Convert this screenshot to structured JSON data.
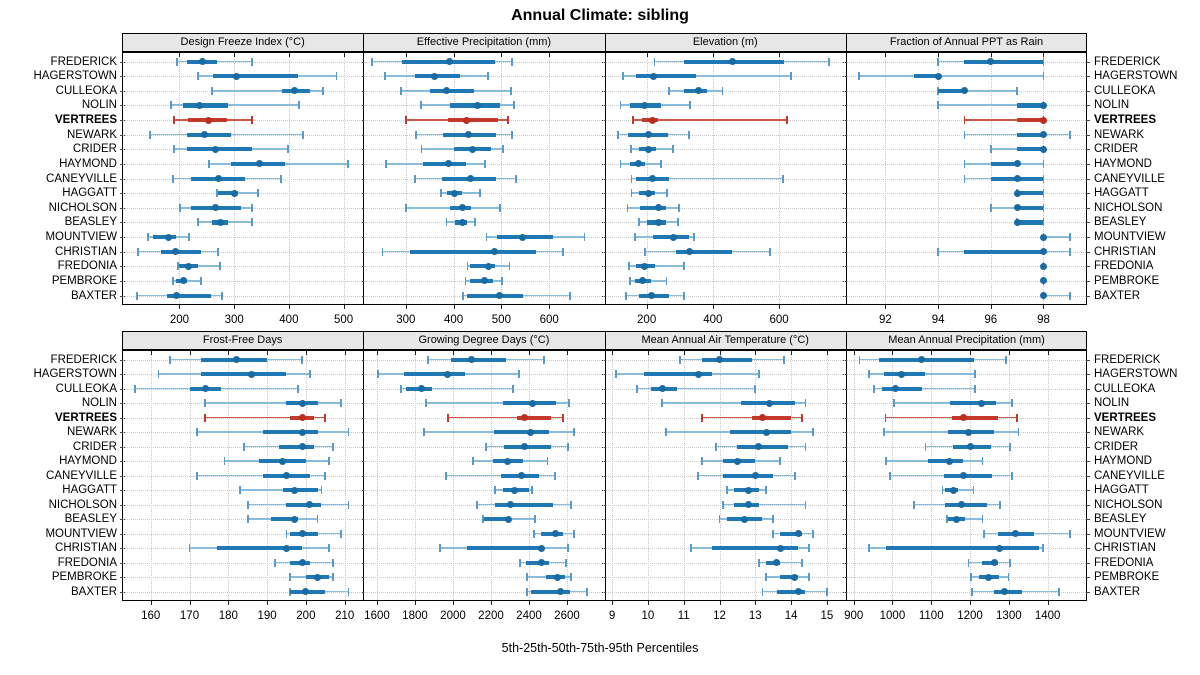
{
  "title": "Annual Climate: sibling",
  "caption": "5th-25th-50th-75th-95th Percentiles",
  "chart_data": {
    "type": "scatter",
    "variant": "percentile-dotplot",
    "percentiles": [
      5,
      25,
      50,
      75,
      95
    ],
    "grid": "dotted",
    "legend": "none",
    "highlight_site": "VERTREES",
    "colors": {
      "box": "#1f77b4",
      "whisker": "#8abbdb",
      "cap": "#569bc9",
      "dot": "#1b6ba3",
      "highlight_box": "#c3392b",
      "highlight_whisker": "#cd5a49",
      "highlight_cap": "#c3392b",
      "highlight_dot": "#bb2e20",
      "header_bg": "#e7e7e7",
      "gridline": "#c9c9c9"
    },
    "sites": [
      "FREDERICK",
      "HAGERSTOWN",
      "CULLEOKA",
      "NOLIN",
      "VERTREES",
      "NEWARK",
      "CRIDER",
      "HAYMOND",
      "CANEYVILLE",
      "HAGGATT",
      "NICHOLSON",
      "BEASLEY",
      "MOUNTVIEW",
      "CHRISTIAN",
      "FREDONIA",
      "PEMBROKE",
      "BAXTER"
    ],
    "panels": [
      {
        "title": "Design Freeze Index (°C)",
        "ticks": [
          200,
          300,
          400,
          500
        ],
        "domain": [
          95,
          536
        ],
        "values": [
          [
            195,
            213,
            242,
            268,
            332
          ],
          [
            234,
            261,
            305,
            417,
            487
          ],
          [
            260,
            387,
            411,
            438,
            463
          ],
          [
            184,
            207,
            237,
            289,
            419
          ],
          [
            190,
            216,
            254,
            286,
            332
          ],
          [
            146,
            213,
            246,
            295,
            426
          ],
          [
            190,
            213,
            265,
            332,
            399
          ],
          [
            254,
            295,
            347,
            393,
            508
          ],
          [
            188,
            222,
            271,
            320,
            385
          ],
          [
            269,
            271,
            301,
            307,
            344
          ],
          [
            201,
            222,
            266,
            313,
            332
          ],
          [
            234,
            259,
            275,
            289,
            332
          ],
          [
            142,
            152,
            180,
            194,
            218
          ],
          [
            124,
            167,
            193,
            240,
            271
          ],
          [
            198,
            199,
            217,
            234,
            274
          ],
          [
            188,
            193,
            207,
            213,
            240
          ],
          [
            123,
            178,
            194,
            258,
            278
          ]
        ]
      },
      {
        "title": "Effective Precipitation (mm)",
        "ticks": [
          300,
          400,
          500,
          600
        ],
        "domain": [
          211,
          716
        ],
        "values": [
          [
            230,
            293,
            391,
            486,
            523
          ],
          [
            256,
            319,
            361,
            413,
            472
          ],
          [
            290,
            350,
            386,
            442,
            520
          ],
          [
            331,
            392,
            451,
            498,
            526
          ],
          [
            301,
            389,
            427,
            493,
            514
          ],
          [
            321,
            377,
            432,
            488,
            523
          ],
          [
            333,
            401,
            439,
            479,
            503
          ],
          [
            258,
            336,
            390,
            427,
            465
          ],
          [
            319,
            375,
            436,
            488,
            531
          ],
          [
            373,
            386,
            401,
            418,
            456
          ],
          [
            300,
            392,
            418,
            437,
            497
          ],
          [
            385,
            402,
            418,
            427,
            444
          ],
          [
            469,
            490,
            545,
            608,
            674
          ],
          [
            251,
            308,
            485,
            573,
            629
          ],
          [
            429,
            434,
            472,
            486,
            517
          ],
          [
            425,
            434,
            465,
            483,
            502
          ],
          [
            420,
            427,
            497,
            545,
            643
          ]
        ]
      },
      {
        "title": "Elevation (m)",
        "ticks": [
          200,
          400,
          600
        ],
        "domain": [
          73,
          802
        ],
        "values": [
          [
            224,
            313,
            459,
            615,
            751
          ],
          [
            128,
            167,
            222,
            348,
            635
          ],
          [
            267,
            313,
            358,
            383,
            429
          ],
          [
            121,
            150,
            194,
            244,
            331
          ],
          [
            160,
            187,
            217,
            234,
            625
          ],
          [
            113,
            144,
            207,
            264,
            328
          ],
          [
            152,
            177,
            205,
            227,
            280
          ],
          [
            121,
            150,
            175,
            194,
            244
          ],
          [
            154,
            167,
            219,
            267,
            613
          ],
          [
            154,
            177,
            207,
            224,
            262
          ],
          [
            142,
            180,
            235,
            257,
            297
          ],
          [
            177,
            202,
            237,
            260,
            294
          ],
          [
            164,
            220,
            282,
            327,
            344
          ],
          [
            194,
            290,
            329,
            457,
            572
          ],
          [
            147,
            167,
            194,
            224,
            312
          ],
          [
            150,
            164,
            187,
            214,
            260
          ],
          [
            137,
            177,
            214,
            267,
            312
          ]
        ]
      },
      {
        "title": "Fraction of Annual PPT as Rain",
        "ticks": [
          92,
          94,
          96,
          98
        ],
        "domain": [
          90.5,
          99.66
        ],
        "values": [
          [
            94,
            95,
            96,
            98,
            98
          ],
          [
            91,
            93.1,
            94,
            94,
            98
          ],
          [
            94,
            94,
            95,
            95,
            97
          ],
          [
            94,
            97,
            98,
            98,
            98
          ],
          [
            95,
            97,
            98,
            98,
            98
          ],
          [
            95,
            97,
            98,
            98,
            99
          ],
          [
            96,
            97,
            98,
            98,
            98
          ],
          [
            95,
            96,
            97,
            97,
            98
          ],
          [
            95,
            96,
            97,
            98,
            98
          ],
          [
            97,
            97,
            97,
            98,
            98
          ],
          [
            96,
            97,
            97,
            98,
            98
          ],
          [
            97,
            97,
            97,
            98,
            98
          ],
          [
            98,
            98,
            98,
            98,
            99
          ],
          [
            94,
            95,
            98,
            98,
            99
          ],
          [
            98,
            98,
            98,
            98,
            98
          ],
          [
            98,
            98,
            98,
            98,
            98
          ],
          [
            98,
            98,
            98,
            98,
            99
          ]
        ]
      },
      {
        "title": "Frost-Free Days",
        "ticks": [
          160,
          170,
          180,
          190,
          200,
          210
        ],
        "domain": [
          152.6,
          214.8
        ],
        "values": [
          [
            165,
            173,
            182,
            190,
            199
          ],
          [
            162,
            173,
            186,
            195,
            201
          ],
          [
            156,
            170,
            174,
            178,
            198
          ],
          [
            174,
            195,
            199,
            203,
            209
          ],
          [
            174,
            196,
            199,
            202,
            205
          ],
          [
            172,
            189,
            199,
            203,
            211
          ],
          [
            184,
            193,
            199,
            202,
            207
          ],
          [
            179,
            188,
            194,
            200,
            206
          ],
          [
            172,
            189,
            195,
            201,
            205
          ],
          [
            183,
            194,
            197,
            203,
            204
          ],
          [
            185,
            195,
            201,
            204,
            211
          ],
          [
            185,
            191,
            197,
            198,
            203
          ],
          [
            195,
            196,
            199,
            203,
            209
          ],
          [
            170,
            177,
            195,
            199,
            206
          ],
          [
            192,
            196,
            199,
            201,
            207
          ],
          [
            196,
            200,
            203,
            206,
            207
          ],
          [
            196,
            196,
            200,
            205,
            211
          ]
        ]
      },
      {
        "title": "Growing Degree Days (°C)",
        "ticks": [
          1600,
          1800,
          2000,
          2200,
          2400,
          2600
        ],
        "domain": [
          1528,
          2798
        ],
        "values": [
          [
            1867,
            1989,
            2095,
            2279,
            2481
          ],
          [
            1604,
            1744,
            1972,
            2065,
            2349
          ],
          [
            1726,
            1753,
            1832,
            1889,
            2314
          ],
          [
            1858,
            2261,
            2416,
            2542,
            2612
          ],
          [
            1975,
            2337,
            2379,
            2516,
            2577
          ],
          [
            1849,
            2218,
            2407,
            2507,
            2639
          ],
          [
            2174,
            2270,
            2375,
            2516,
            2604
          ],
          [
            2104,
            2209,
            2288,
            2367,
            2498
          ],
          [
            1963,
            2253,
            2363,
            2454,
            2539
          ],
          [
            2221,
            2261,
            2323,
            2402,
            2414
          ],
          [
            2126,
            2223,
            2302,
            2525,
            2621
          ],
          [
            2156,
            2165,
            2293,
            2305,
            2432
          ],
          [
            2425,
            2463,
            2542,
            2577,
            2635
          ],
          [
            1933,
            2074,
            2468,
            2480,
            2604
          ],
          [
            2354,
            2384,
            2467,
            2507,
            2595
          ],
          [
            2388,
            2489,
            2551,
            2591,
            2621
          ],
          [
            2388,
            2411,
            2565,
            2618,
            2705
          ]
        ]
      },
      {
        "title": "Mean Annual Air Temperature (°C)",
        "ticks": [
          9,
          10,
          11,
          12,
          13,
          14,
          15
        ],
        "domain": [
          8.79,
          15.53
        ],
        "values": [
          [
            10.9,
            11.5,
            12.0,
            12.9,
            13.8
          ],
          [
            9.1,
            9.9,
            11.4,
            11.8,
            13.1
          ],
          [
            9.7,
            10.1,
            10.4,
            10.8,
            13.0
          ],
          [
            10.4,
            12.6,
            13.4,
            14.1,
            14.4
          ],
          [
            11.5,
            12.9,
            13.2,
            14.0,
            14.3
          ],
          [
            10.5,
            12.3,
            13.3,
            14.0,
            14.6
          ],
          [
            11.9,
            12.5,
            13.1,
            13.9,
            14.4
          ],
          [
            11.5,
            12.1,
            12.5,
            13.0,
            13.7
          ],
          [
            11.4,
            12.1,
            13.0,
            13.5,
            14.1
          ],
          [
            12.2,
            12.4,
            12.8,
            13.1,
            13.3
          ],
          [
            12.1,
            12.4,
            12.8,
            13.1,
            14.4
          ],
          [
            12.0,
            12.2,
            12.7,
            13.2,
            13.5
          ],
          [
            13.5,
            13.7,
            14.2,
            14.3,
            14.6
          ],
          [
            11.2,
            11.8,
            13.7,
            14.2,
            14.5
          ],
          [
            13.1,
            13.3,
            13.6,
            13.7,
            14.3
          ],
          [
            13.3,
            13.7,
            14.1,
            14.2,
            14.5
          ],
          [
            13.2,
            13.6,
            14.2,
            14.4,
            15.0
          ]
        ]
      },
      {
        "title": "Mean Annual Precipitation (mm)",
        "ticks": [
          900,
          1000,
          1100,
          1200,
          1300,
          1400
        ],
        "domain": [
          880,
          1502
        ],
        "values": [
          [
            915,
            966,
            1076,
            1211,
            1292
          ],
          [
            939,
            977,
            1024,
            1085,
            1213
          ],
          [
            952,
            973,
            1009,
            1076,
            1213
          ],
          [
            1003,
            1149,
            1230,
            1267,
            1309
          ],
          [
            982,
            1153,
            1182,
            1273,
            1321
          ],
          [
            979,
            1142,
            1195,
            1262,
            1325
          ],
          [
            1085,
            1155,
            1200,
            1254,
            1303
          ],
          [
            983,
            1091,
            1146,
            1181,
            1232
          ],
          [
            994,
            1133,
            1183,
            1256,
            1308
          ],
          [
            1129,
            1136,
            1157,
            1170,
            1209
          ],
          [
            1056,
            1136,
            1179,
            1245,
            1277
          ],
          [
            1140,
            1142,
            1164,
            1188,
            1232
          ],
          [
            1235,
            1271,
            1318,
            1365,
            1457
          ],
          [
            939,
            983,
            1275,
            1378,
            1388
          ],
          [
            1196,
            1230,
            1262,
            1271,
            1303
          ],
          [
            1202,
            1224,
            1248,
            1275,
            1299
          ],
          [
            1205,
            1261,
            1290,
            1335,
            1430
          ]
        ]
      }
    ]
  }
}
